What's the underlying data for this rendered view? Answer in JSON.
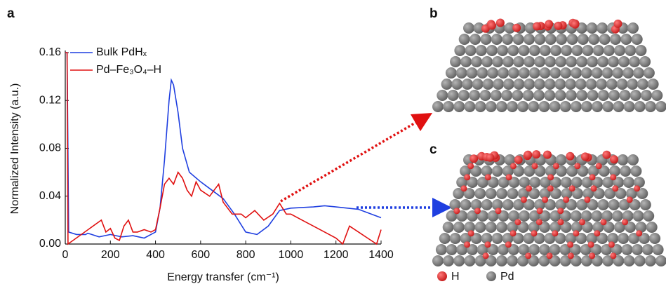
{
  "chart_data": {
    "type": "line",
    "panel_labels": [
      "a",
      "b",
      "c"
    ],
    "xlabel": "Energy transfer (cm⁻¹)",
    "ylabel": "Normalized Intensity (a.u.)",
    "xlim": [
      0,
      1400
    ],
    "ylim": [
      0,
      0.16
    ],
    "xticks": [
      0,
      200,
      400,
      600,
      800,
      1000,
      1200,
      1400
    ],
    "yticks": [
      {
        "value": 0,
        "label": "0.00"
      },
      {
        "value": 0.04,
        "label": "0.04"
      },
      {
        "value": 0.08,
        "label": "0.08"
      },
      {
        "value": 0.12,
        "label": "0.12"
      },
      {
        "value": 0.16,
        "label": "0.16"
      }
    ],
    "series": [
      {
        "name": "Bulk PdHₓ",
        "color": "#1f3fe0",
        "x": [
          0,
          8,
          15,
          50,
          90,
          100,
          150,
          200,
          250,
          300,
          350,
          400,
          420,
          440,
          460,
          470,
          480,
          500,
          520,
          550,
          600,
          650,
          700,
          750,
          800,
          850,
          900,
          950,
          1000,
          1100,
          1150,
          1200,
          1300,
          1400
        ],
        "values": [
          0.16,
          0.16,
          0.01,
          0.008,
          0.008,
          0.009,
          0.006,
          0.008,
          0.006,
          0.007,
          0.005,
          0.01,
          0.03,
          0.07,
          0.12,
          0.137,
          0.133,
          0.11,
          0.08,
          0.06,
          0.052,
          0.045,
          0.038,
          0.025,
          0.01,
          0.008,
          0.015,
          0.028,
          0.03,
          0.031,
          0.032,
          0.031,
          0.029,
          0.022
        ]
      },
      {
        "name": "Pd–Fe₃O₄–H",
        "color": "#e01010",
        "x": [
          0,
          8,
          12,
          160,
          180,
          200,
          220,
          240,
          260,
          280,
          300,
          320,
          350,
          380,
          400,
          420,
          440,
          460,
          480,
          500,
          520,
          540,
          560,
          580,
          600,
          640,
          660,
          680,
          700,
          740,
          780,
          800,
          840,
          880,
          920,
          950,
          980,
          1000,
          1050,
          1100,
          1150,
          1200,
          1230,
          1260,
          1300,
          1340,
          1380,
          1400
        ],
        "values": [
          0.16,
          0.16,
          0.0,
          0.02,
          0.01,
          0.013,
          0.005,
          0.003,
          0.015,
          0.02,
          0.01,
          0.01,
          0.012,
          0.01,
          0.012,
          0.03,
          0.05,
          0.055,
          0.05,
          0.06,
          0.055,
          0.045,
          0.04,
          0.052,
          0.045,
          0.04,
          0.045,
          0.05,
          0.035,
          0.025,
          0.025,
          0.022,
          0.028,
          0.02,
          0.025,
          0.034,
          0.025,
          0.025,
          0.02,
          0.015,
          0.01,
          0.005,
          0.0,
          0.015,
          0.01,
          0.005,
          0.0,
          0.012
        ]
      }
    ],
    "atom_legend": [
      "H",
      "Pd"
    ]
  }
}
